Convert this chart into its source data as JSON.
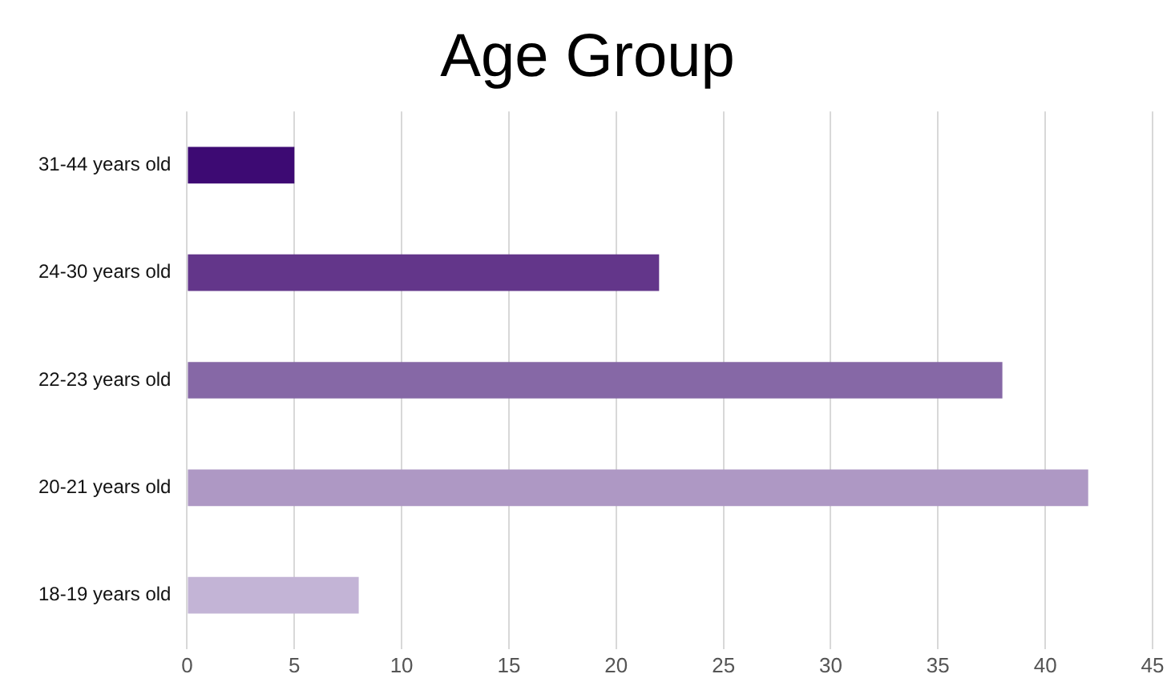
{
  "chart_data": {
    "type": "bar",
    "orientation": "horizontal",
    "title": "Age Group",
    "categories": [
      "31-44 years old",
      "24-30 years old",
      "22-23 years old",
      "20-21 years old",
      "18-19 years old"
    ],
    "values": [
      5,
      22,
      38,
      42,
      8
    ],
    "colors": [
      "#3d0a73",
      "#63368a",
      "#8668a6",
      "#ae98c4",
      "#c3b4d6"
    ],
    "xlim": [
      0,
      45
    ],
    "xticks": [
      0,
      5,
      10,
      15,
      20,
      25,
      30,
      35,
      40,
      45
    ],
    "grid": "x",
    "legend": false
  }
}
